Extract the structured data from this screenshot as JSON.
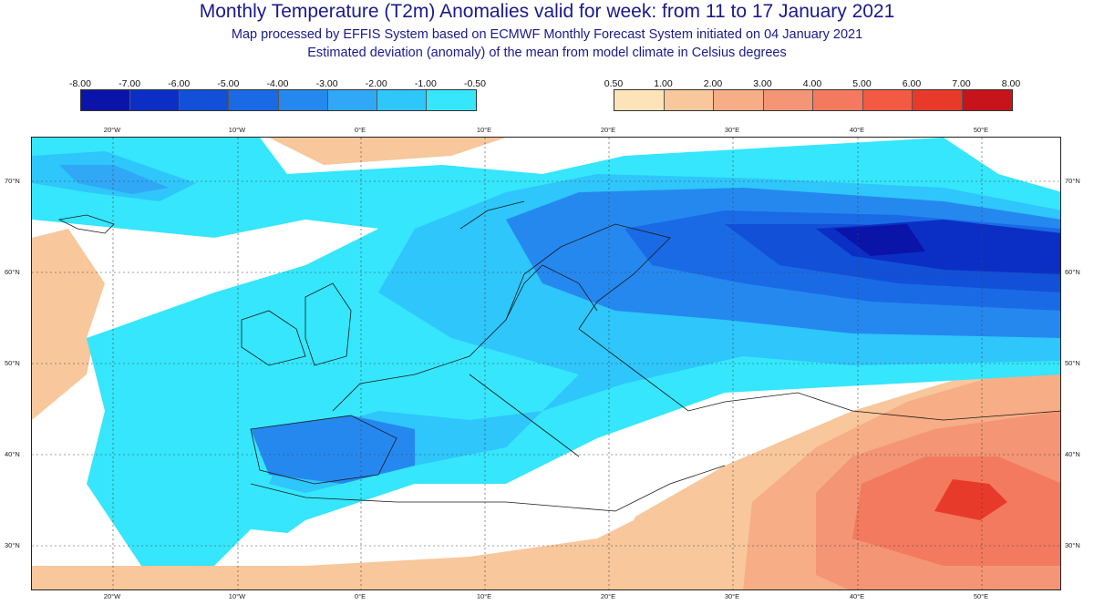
{
  "title": "Monthly Temperature (T2m) Anomalies valid for week: from 11 to 17 January 2021",
  "subtitle1": "Map processed by EFFIS System based on ECMWF Monthly Forecast System initiated on 04 January 2021",
  "subtitle2": "Estimated deviation (anomaly) of the mean from model climate in Celsius degrees",
  "legend_cold": {
    "ticks": [
      "-8.00",
      "-7.00",
      "-6.00",
      "-5.00",
      "-4.00",
      "-3.00",
      "-2.00",
      "-1.00",
      "-0.50"
    ],
    "colors": [
      "#0a14a8",
      "#0b2fc4",
      "#1250d8",
      "#1a6ae6",
      "#2588ef",
      "#30a8f6",
      "#2ec6fb",
      "#35e6fc"
    ]
  },
  "legend_warm": {
    "ticks": [
      "0.50",
      "1.00",
      "2.00",
      "3.00",
      "4.00",
      "5.00",
      "6.00",
      "7.00",
      "8.00"
    ],
    "colors": [
      "#fde4b8",
      "#f8c79c",
      "#f7ad85",
      "#f49575",
      "#f37a5f",
      "#f25a44",
      "#e83a2a",
      "#c7141a"
    ]
  },
  "lon_labels": [
    "20°W",
    "10°W",
    "0°E",
    "10°E",
    "20°E",
    "30°E",
    "40°E",
    "50°E"
  ],
  "lat_labels": [
    "70°N",
    "60°N",
    "50°N",
    "40°N",
    "30°N"
  ],
  "colors": {
    "title": "#1a1a8c",
    "no_anomaly": "#ffffff",
    "coast": "#1a1a1a",
    "grid": "#444444"
  }
}
